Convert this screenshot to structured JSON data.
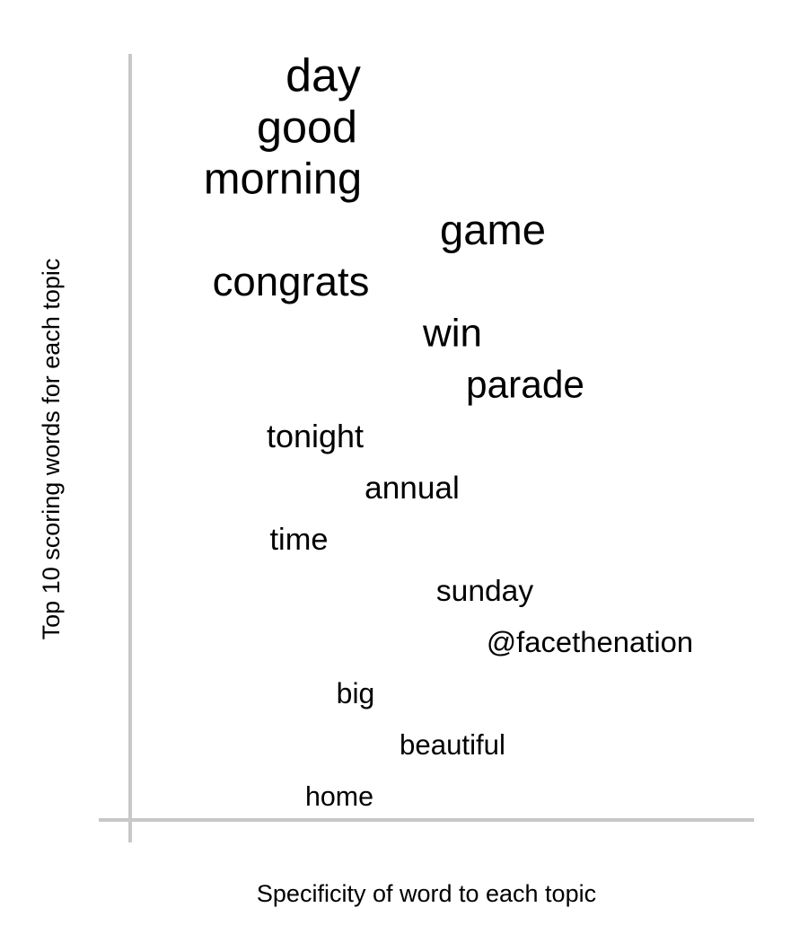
{
  "chart_data": {
    "type": "scatter",
    "title": "",
    "xlabel": "Specificity of word to each topic",
    "ylabel": "Top 10 scoring words for each topic",
    "grid": false,
    "legend": "none",
    "axis_color": "#c8c8c8",
    "text_color": "#000000",
    "points": [
      {
        "word": "day",
        "x": 0.4,
        "rank": 1,
        "weight": 1.0
      },
      {
        "word": "good",
        "x": 0.38,
        "rank": 2,
        "weight": 0.96
      },
      {
        "word": "morning",
        "x": 0.35,
        "rank": 3,
        "weight": 0.92
      },
      {
        "word": "game",
        "x": 0.61,
        "rank": 4,
        "weight": 0.88
      },
      {
        "word": "congrats",
        "x": 0.36,
        "rank": 5,
        "weight": 0.84
      },
      {
        "word": "win",
        "x": 0.56,
        "rank": 6,
        "weight": 0.8
      },
      {
        "word": "parade",
        "x": 0.65,
        "rank": 7,
        "weight": 0.76
      },
      {
        "word": "tonight",
        "x": 0.39,
        "rank": 8,
        "weight": 0.6
      },
      {
        "word": "annual",
        "x": 0.51,
        "rank": 9,
        "weight": 0.58
      },
      {
        "word": "time",
        "x": 0.37,
        "rank": 10,
        "weight": 0.56
      },
      {
        "word": "sunday",
        "x": 0.6,
        "rank": 11,
        "weight": 0.54
      },
      {
        "word": "@facethenation",
        "x": 0.73,
        "rank": 12,
        "weight": 0.52
      },
      {
        "word": "big",
        "x": 0.44,
        "rank": 13,
        "weight": 0.5
      },
      {
        "word": "beautiful",
        "x": 0.56,
        "rank": 14,
        "weight": 0.48
      },
      {
        "word": "home",
        "x": 0.42,
        "rank": 15,
        "weight": 0.46
      }
    ]
  }
}
